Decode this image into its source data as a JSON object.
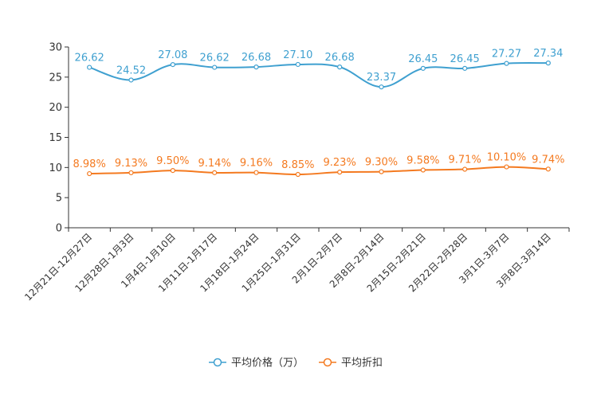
{
  "chart_data": {
    "type": "line",
    "categories": [
      "12月21日-12月27日",
      "12月28日-1月3日",
      "1月4日-1月10日",
      "1月11日-1月17日",
      "1月18日-1月24日",
      "1月25日-1月31日",
      "2月1日-2月7日",
      "2月8日-2月14日",
      "2月15日-2月21日",
      "2月22日-2月28日",
      "3月1日-3月7日",
      "3月8日-3月14日"
    ],
    "ylim": [
      0,
      30
    ],
    "yticks": [
      0,
      5,
      10,
      15,
      20,
      25,
      30
    ],
    "series": [
      {
        "name": "平均价格（万）",
        "color": "#3fa0d0",
        "values": [
          26.62,
          24.52,
          27.08,
          26.62,
          26.68,
          27.1,
          26.68,
          23.37,
          26.45,
          26.45,
          27.27,
          27.34
        ],
        "labels": [
          "26.62",
          "24.52",
          "27.08",
          "26.62",
          "26.68",
          "27.10",
          "26.68",
          "23.37",
          "26.45",
          "26.45",
          "27.27",
          "27.34"
        ]
      },
      {
        "name": "平均折扣",
        "color": "#f47a20",
        "values": [
          8.98,
          9.13,
          9.5,
          9.14,
          9.16,
          8.85,
          9.23,
          9.3,
          9.58,
          9.71,
          10.1,
          9.74
        ],
        "labels": [
          "8.98%",
          "9.13%",
          "9.50%",
          "9.14%",
          "9.16%",
          "8.85%",
          "9.23%",
          "9.30%",
          "9.58%",
          "9.71%",
          "10.10%",
          "9.74%"
        ]
      }
    ],
    "legend_position": "bottom-center",
    "grid": false
  }
}
